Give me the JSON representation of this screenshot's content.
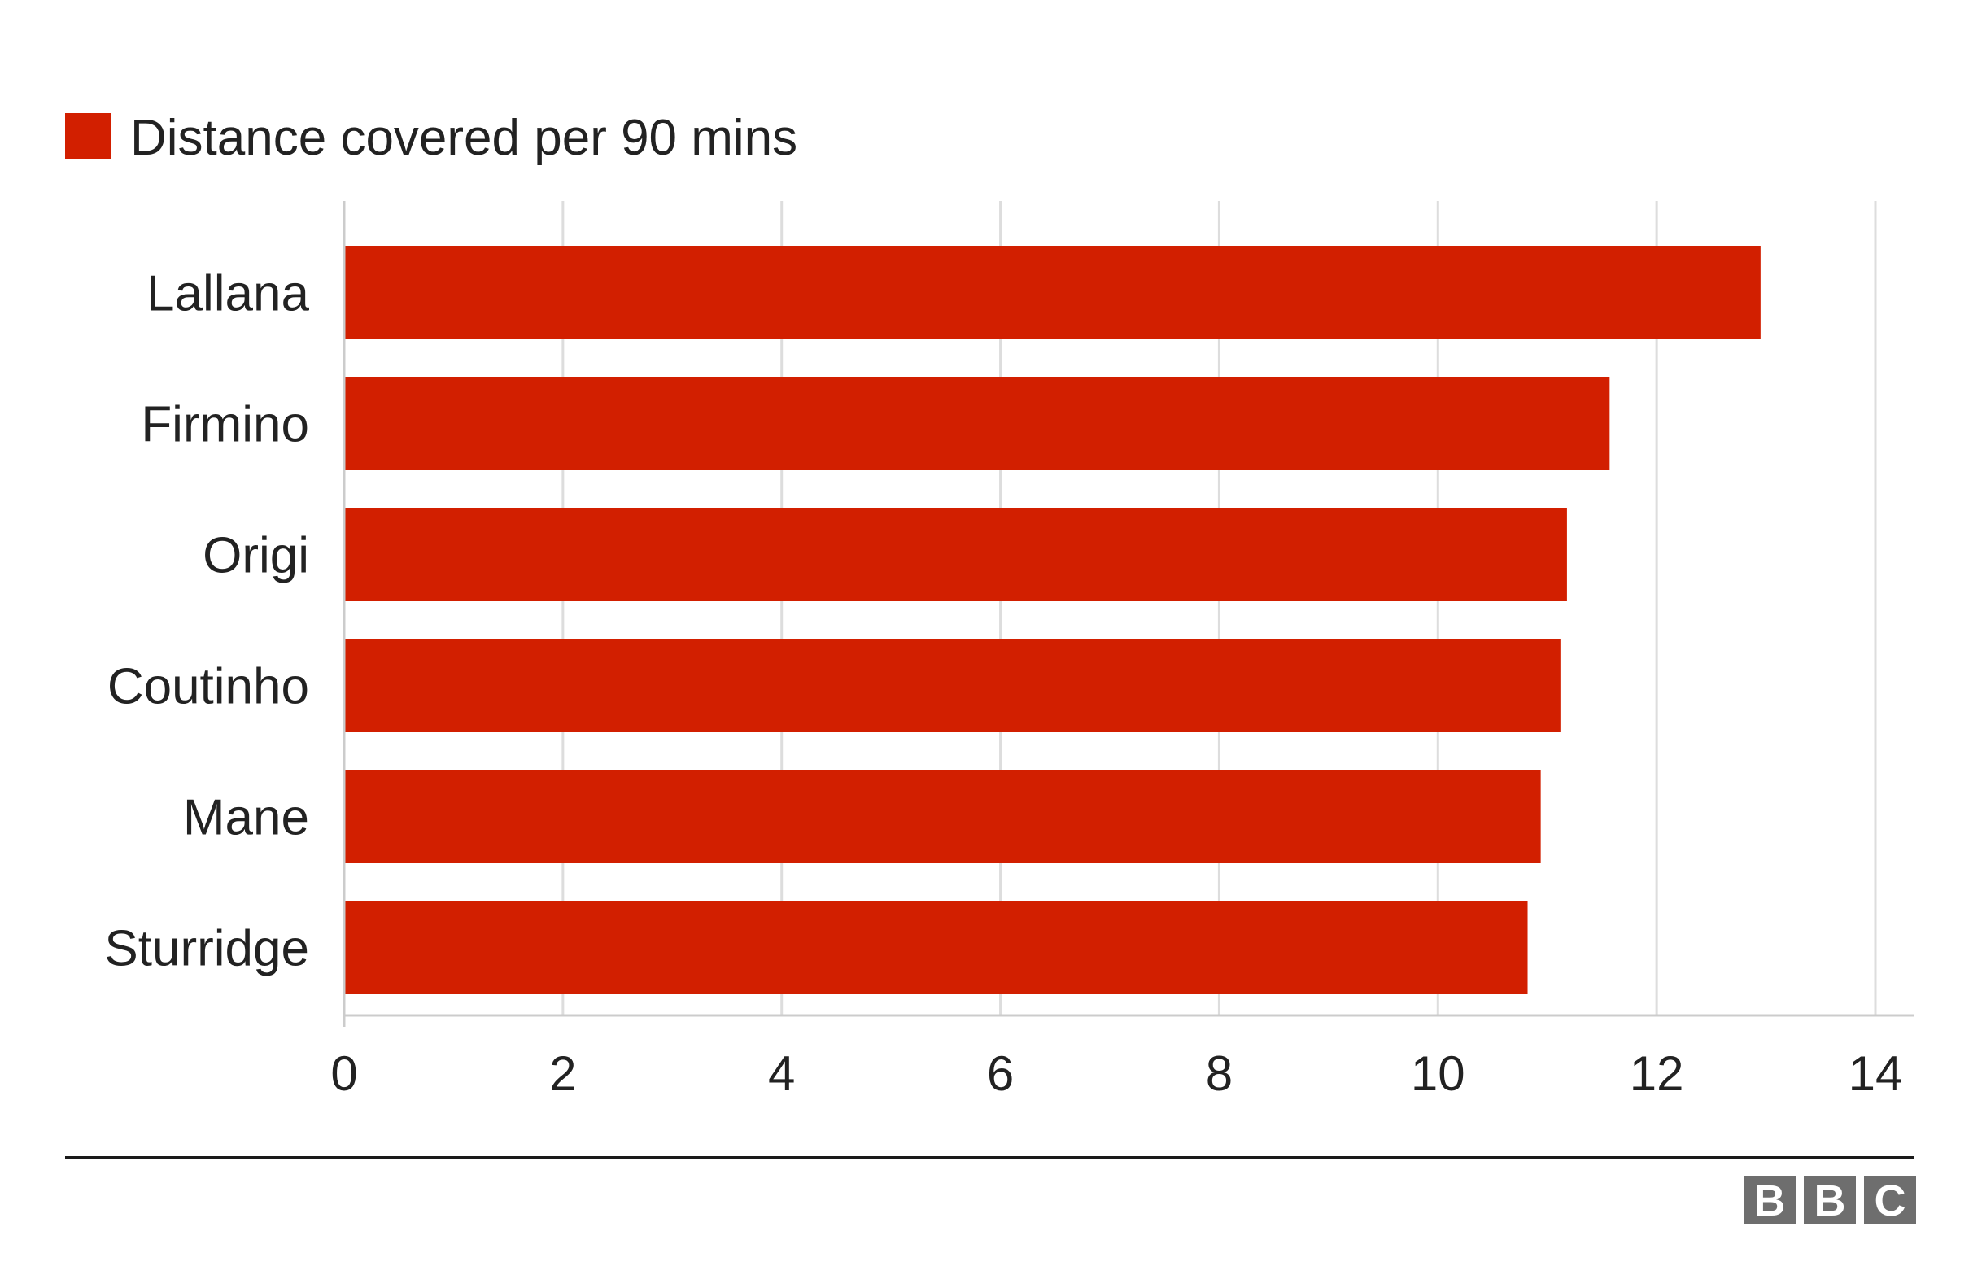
{
  "chart_data": {
    "type": "bar",
    "orientation": "horizontal",
    "categories": [
      "Lallana",
      "Firmino",
      "Origi",
      "Coutinho",
      "Mane",
      "Sturridge"
    ],
    "series": [
      {
        "name": "Distance covered per 90 mins",
        "color": "#d21f00",
        "values": [
          12.95,
          11.57,
          11.18,
          11.12,
          10.94,
          10.82
        ]
      }
    ],
    "x_ticks": [
      "0",
      "2",
      "4",
      "6",
      "8",
      "10",
      "12",
      "14"
    ],
    "xlim": [
      0,
      14
    ],
    "grid": true,
    "legend": "top-left"
  },
  "branding": {
    "letters": [
      "B",
      "B",
      "C"
    ],
    "logo_color": "#6e6e6e"
  }
}
